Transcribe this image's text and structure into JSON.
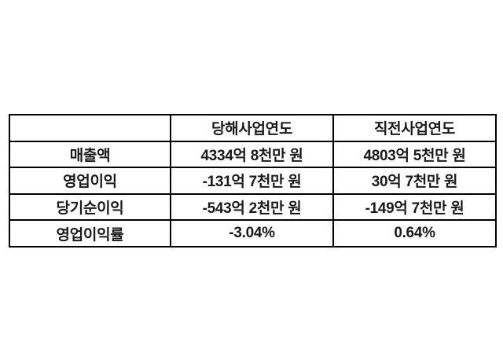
{
  "chart_data": {
    "type": "table",
    "title": "",
    "columns": [
      "",
      "당해사업연도",
      "직전사업연도"
    ],
    "rows": [
      [
        "매출액",
        "4334억 8천만 원",
        "4803억 5천만 원"
      ],
      [
        "영업이익",
        "-131억 7천만 원",
        "30억 7천만 원"
      ],
      [
        "당기순이익",
        "-543억 2천만 원",
        "-149억 7천만 원"
      ],
      [
        "영업이익률",
        "-3.04%",
        "0.64%"
      ]
    ],
    "layout": {
      "grid": "all-borders",
      "text_align": "center",
      "font_weight": "bold"
    }
  },
  "colors": {
    "background": "#ffffff",
    "border": "#000000",
    "text": "#1a1a1a"
  }
}
